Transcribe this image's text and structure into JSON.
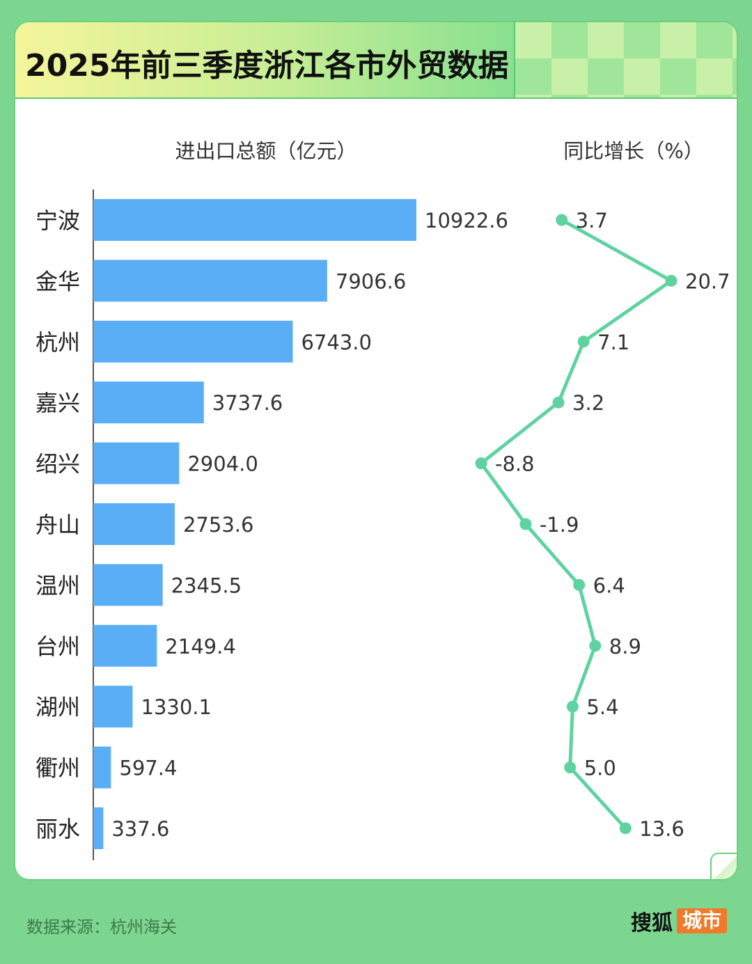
{
  "header": {
    "title": "2025年前三季度浙江各市外贸数据"
  },
  "footer": {
    "source": "数据来源：杭州海关",
    "brand_name": "搜狐",
    "brand_badge": "城市"
  },
  "colors": {
    "bar": "#5aaef5",
    "line": "#5ed3a0",
    "page_bg": "#7dd68f",
    "badge": "#f07a2a"
  },
  "chart_data": [
    {
      "type": "bar",
      "orientation": "horizontal",
      "title": "进出口总额（亿元）",
      "categories": [
        "宁波",
        "金华",
        "杭州",
        "嘉兴",
        "绍兴",
        "舟山",
        "温州",
        "台州",
        "湖州",
        "衢州",
        "丽水"
      ],
      "values": [
        10922.6,
        7906.6,
        6743.0,
        3737.6,
        2904.0,
        2753.6,
        2345.5,
        2149.4,
        1330.1,
        597.4,
        337.6
      ],
      "value_labels": [
        "10922.6",
        "7906.6",
        "6743.0",
        "3737.6",
        "2904.0",
        "2753.6",
        "2345.5",
        "2149.4",
        "1330.1",
        "597.4",
        "337.6"
      ],
      "xlim": [
        0,
        11000
      ],
      "grid": false,
      "legend": "none"
    },
    {
      "type": "line",
      "orientation": "vertical",
      "title": "同比增长（%）",
      "categories": [
        "宁波",
        "金华",
        "杭州",
        "嘉兴",
        "绍兴",
        "舟山",
        "温州",
        "台州",
        "湖州",
        "衢州",
        "丽水"
      ],
      "values": [
        3.7,
        20.7,
        7.1,
        3.2,
        -8.8,
        -1.9,
        6.4,
        8.9,
        5.4,
        5.0,
        13.6
      ],
      "value_labels": [
        "3.7",
        "20.7",
        "7.1",
        "3.2",
        "-8.8",
        "-1.9",
        "6.4",
        "8.9",
        "5.4",
        "5.0",
        "13.6"
      ],
      "xlim": [
        -8.8,
        20.7
      ],
      "grid": false,
      "legend": "none"
    }
  ]
}
